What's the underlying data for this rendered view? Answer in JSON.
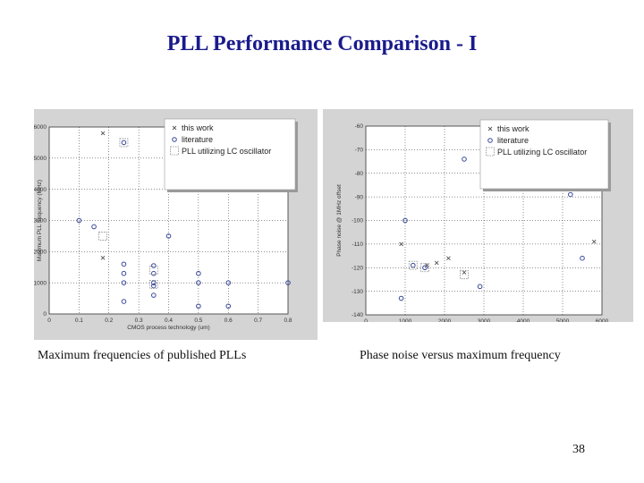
{
  "slide": {
    "title": "PLL Performance Comparison - I",
    "page_number": "38",
    "captions": {
      "left": "Maximum frequencies of published PLLs",
      "right": "Phase noise versus maximum frequency"
    }
  },
  "colors": {
    "title": "#1a1a8c",
    "literature": "#3a4a9a",
    "marker": "#555555",
    "panel": "#d4d4d4"
  },
  "chart_data": [
    {
      "type": "scatter",
      "xlabel": "CMOS process technology (um)",
      "ylabel": "Maximum PLL frequency (MHz)",
      "xlim": [
        0,
        0.8
      ],
      "ylim": [
        0,
        6000
      ],
      "xticks": [
        "0",
        "0.1",
        "0.2",
        "0.3",
        "0.4",
        "0.5",
        "0.6",
        "0.7",
        "0.8"
      ],
      "xtick_values": [
        0,
        0.1,
        0.2,
        0.3,
        0.4,
        0.5,
        0.6,
        0.7,
        0.8
      ],
      "yticks": [
        "0",
        "1000",
        "2000",
        "3000",
        "4000",
        "5000",
        "6000"
      ],
      "ytick_values": [
        0,
        1000,
        2000,
        3000,
        4000,
        5000,
        6000
      ],
      "grid": true,
      "legend_position": "top-right",
      "legend": [
        "this work",
        "literature",
        "PLL utilizing LC oscillator"
      ],
      "series": [
        {
          "name": "this work",
          "marker": "x",
          "points": [
            [
              0.18,
              5800
            ],
            [
              0.18,
              1800
            ]
          ]
        },
        {
          "name": "literature",
          "marker": "o",
          "points": [
            [
              0.1,
              3000
            ],
            [
              0.15,
              2800
            ],
            [
              0.25,
              5500
            ],
            [
              0.25,
              1600
            ],
            [
              0.25,
              1300
            ],
            [
              0.25,
              1000
            ],
            [
              0.25,
              400
            ],
            [
              0.35,
              1550
            ],
            [
              0.35,
              1300
            ],
            [
              0.35,
              1000
            ],
            [
              0.35,
              900
            ],
            [
              0.35,
              600
            ],
            [
              0.4,
              2500
            ],
            [
              0.5,
              1300
            ],
            [
              0.5,
              1000
            ],
            [
              0.5,
              250
            ],
            [
              0.6,
              1000
            ],
            [
              0.6,
              250
            ],
            [
              0.8,
              1000
            ]
          ]
        },
        {
          "name": "PLL utilizing LC oscillator",
          "marker": "square",
          "points": [
            [
              0.18,
              2500
            ],
            [
              0.25,
              5500
            ],
            [
              0.35,
              1400
            ],
            [
              0.35,
              950
            ]
          ]
        }
      ]
    },
    {
      "type": "scatter",
      "xlabel": "Frequency (MHz) - linear",
      "ylabel": "Phase noise @ 1MHz offset",
      "xlim": [
        0,
        6000
      ],
      "ylim": [
        -140,
        -60
      ],
      "xticks": [
        "0",
        "1000",
        "2000",
        "3000",
        "4000",
        "5000",
        "6000"
      ],
      "xtick_values": [
        0,
        1000,
        2000,
        3000,
        4000,
        5000,
        6000
      ],
      "yticks": [
        "-140",
        "-130",
        "-120",
        "-110",
        "-100",
        "-90",
        "-80",
        "-70",
        "-60"
      ],
      "ytick_values": [
        -140,
        -130,
        -120,
        -110,
        -100,
        -90,
        -80,
        -70,
        -60
      ],
      "grid": true,
      "legend_position": "top-right",
      "legend": [
        "this work",
        "literature",
        "PLL utilizing LC oscillator"
      ],
      "series": [
        {
          "name": "this work",
          "marker": "x",
          "points": [
            [
              900,
              -110
            ],
            [
              1550,
              -119
            ],
            [
              1800,
              -118
            ],
            [
              2100,
              -116
            ],
            [
              2500,
              -122
            ],
            [
              5800,
              -109
            ]
          ]
        },
        {
          "name": "literature",
          "marker": "o",
          "points": [
            [
              1000,
              -100
            ],
            [
              900,
              -133
            ],
            [
              1200,
              -119
            ],
            [
              1500,
              -120
            ],
            [
              2500,
              -74
            ],
            [
              2900,
              -128
            ],
            [
              5500,
              -116
            ],
            [
              5200,
              -89
            ]
          ]
        },
        {
          "name": "PLL utilizing LC oscillator",
          "marker": "square",
          "points": [
            [
              1200,
              -119
            ],
            [
              1500,
              -120
            ],
            [
              2500,
              -123
            ]
          ]
        }
      ]
    }
  ]
}
